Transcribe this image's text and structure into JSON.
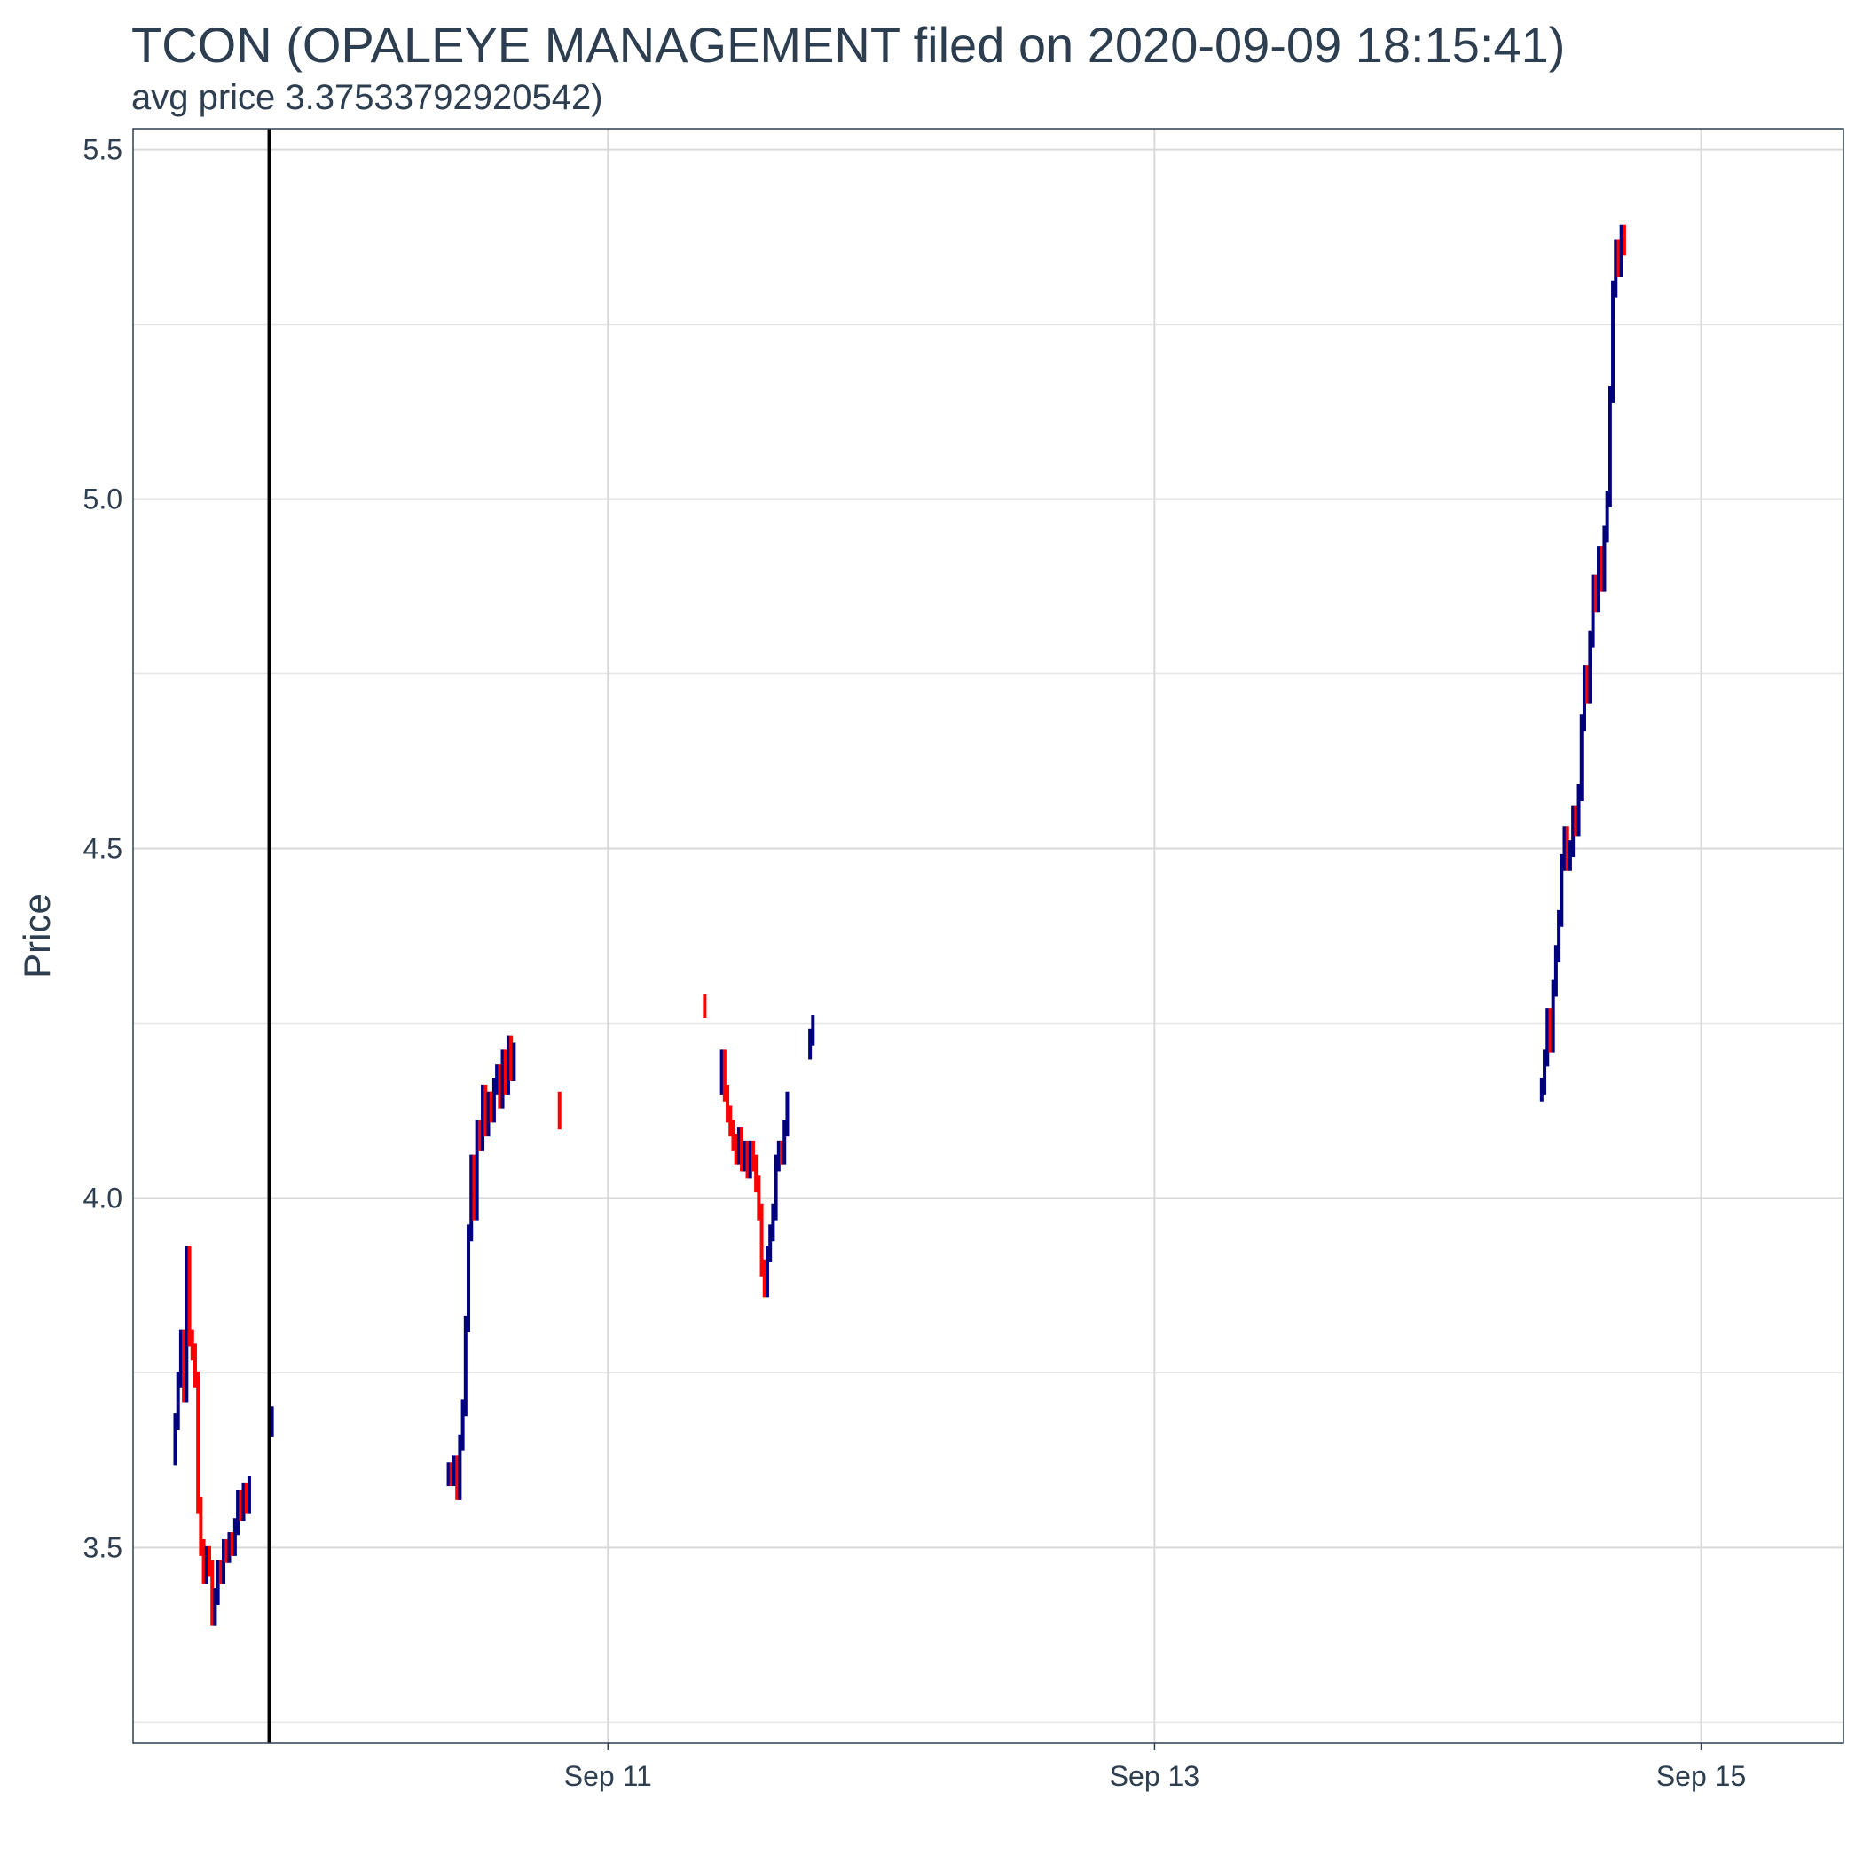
{
  "chart_data": {
    "type": "candlestick",
    "title": "TCON (OPALEYE MANAGEMENT filed on 2020-09-09 18:15:41)",
    "subtitle": "avg price 3.37533792920542)",
    "xlabel": "",
    "ylabel": "Price",
    "x_range": [
      "2020-09-09T06:18",
      "2020-09-15T12:30"
    ],
    "y_range": [
      3.22,
      5.53
    ],
    "y_ticks": [
      3.5,
      4.0,
      4.5,
      5.0,
      5.5
    ],
    "y_tick_labels": [
      "3.5",
      "4.0",
      "4.5",
      "5.0",
      "5.5"
    ],
    "x_ticks": [
      "2020-09-11T00:00",
      "2020-09-13T00:00",
      "2020-09-15T00:00"
    ],
    "x_tick_labels": [
      "Sep 11",
      "Sep 13",
      "Sep 15"
    ],
    "grid": true,
    "legend": "none",
    "colors": {
      "up": "#00007f",
      "down": "#ff0000",
      "grid": "#d9d9d9",
      "filing_line": "#000000",
      "text": "#2d3e50",
      "panel_border": "#2d3e50"
    },
    "filing_marker": "2020-09-09T18:15:41",
    "groups": [
      {
        "start": "2020-09-09T10:00",
        "step_min": 15,
        "seed": 3.63,
        "closes": [
          3.68,
          3.74,
          3.8,
          3.72,
          3.92,
          3.8,
          3.78,
          3.74,
          3.56,
          3.5,
          3.46,
          3.49,
          3.47,
          3.4,
          3.43,
          3.47,
          3.46,
          3.5,
          3.49,
          3.51,
          3.5,
          3.53,
          3.57,
          3.55,
          3.58,
          3.56,
          3.59
        ]
      },
      {
        "start": "2020-09-09T18:30",
        "step_min": 15,
        "seed": 3.67,
        "closes": [
          3.69
        ]
      },
      {
        "start": "2020-09-10T10:00",
        "step_min": 15,
        "seed": 3.6,
        "closes": [
          3.61,
          3.6,
          3.62,
          3.58,
          3.65,
          3.7,
          3.82,
          3.95,
          4.05,
          3.98,
          4.1,
          4.08,
          4.15,
          4.1,
          4.14,
          4.12,
          4.16,
          4.18,
          4.14,
          4.2,
          4.16,
          4.22,
          4.18,
          4.21
        ]
      },
      {
        "start": "2020-09-10T19:45",
        "step_min": 15,
        "seed": 4.14,
        "closes": [
          4.11
        ]
      },
      {
        "start": "2020-09-11T08:30",
        "step_min": 15,
        "seed": 4.28,
        "closes": [
          4.27
        ]
      },
      {
        "start": "2020-09-11T10:00",
        "step_min": 15,
        "seed": 4.16,
        "closes": [
          4.2,
          4.15,
          4.12,
          4.1,
          4.08,
          4.06,
          4.09,
          4.05,
          4.07,
          4.04,
          4.07,
          4.05,
          4.02,
          3.98,
          3.9,
          3.87,
          3.92,
          3.95,
          3.98,
          4.05,
          4.07,
          4.06,
          4.1,
          4.14
        ]
      },
      {
        "start": "2020-09-11T17:45",
        "step_min": 15,
        "seed": 4.21,
        "closes": [
          4.23,
          4.25
        ]
      },
      {
        "start": "2020-09-14T10:00",
        "step_min": 15,
        "seed": 4.15,
        "closes": [
          4.16,
          4.2,
          4.26,
          4.22,
          4.3,
          4.35,
          4.4,
          4.48,
          4.52,
          4.48,
          4.5,
          4.55,
          4.53,
          4.58,
          4.68,
          4.75,
          4.72,
          4.8,
          4.88,
          4.85,
          4.92,
          4.88,
          4.95,
          5.0,
          5.15,
          5.3,
          5.36,
          5.33,
          5.38,
          5.36
        ]
      }
    ]
  }
}
